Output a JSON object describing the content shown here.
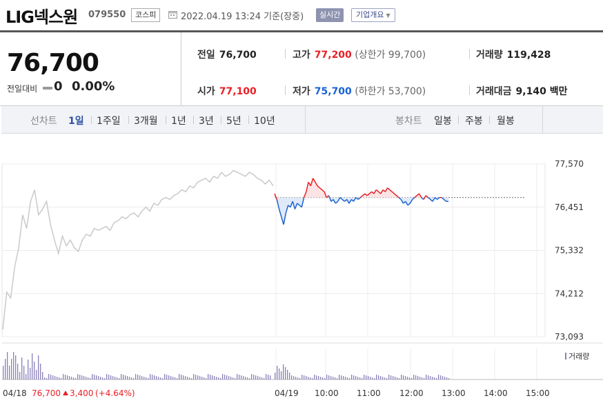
{
  "header": {
    "name": "LIG넥스원",
    "code": "079550",
    "market": "코스피",
    "datetime": "2022.04.19 13:24",
    "basis": "기준(장중)",
    "realtime_label": "실시간",
    "corp_info_label": "기업개요"
  },
  "summary": {
    "price": "76,700",
    "change_label": "전일대비",
    "change_value": "0",
    "change_pct": "0.00%",
    "prev_label": "전일",
    "prev": "76,700",
    "high_label": "고가",
    "high": "77,200",
    "upper_limit": "(상한가 99,700)",
    "volume_label": "거래량",
    "volume": "119,428",
    "open_label": "시가",
    "open": "77,100",
    "low_label": "저가",
    "low": "75,700",
    "lower_limit": "(하한가 53,700)",
    "value_label": "거래대금",
    "value": "9,140",
    "value_unit": "백만"
  },
  "tabs": {
    "line_label": "선차트",
    "periods": [
      "1일",
      "1주일",
      "3개월",
      "1년",
      "3년",
      "5년",
      "10년"
    ],
    "active_period": "1일",
    "candle_label": "봉차트",
    "candles": [
      "일봉",
      "주봉",
      "월봉"
    ]
  },
  "colors": {
    "up": "#e81f25",
    "down": "#1a62d1",
    "prev_day": "#c9c9c9",
    "volume": "#8a7fb8"
  },
  "chart_data": {
    "type": "line",
    "y_ticks": [
      "77,570",
      "76,451",
      "75,332",
      "74,212",
      "73,093"
    ],
    "ylim": [
      73093,
      77570
    ],
    "x_ticks": [
      "04/19",
      "10:00",
      "11:00",
      "12:00",
      "13:00",
      "14:00",
      "15:00"
    ],
    "reference_price": 76700,
    "prev_day_label": "04/18",
    "prev_day_close": "76,700",
    "prev_day_change": "3,400",
    "prev_day_pct": "(+4.64%)",
    "volume_legend": "거래량",
    "series": [
      {
        "name": "04/18",
        "values": [
          73280,
          74250,
          74100,
          74900,
          75400,
          76250,
          75900,
          76600,
          76900,
          76250,
          76400,
          76600,
          76000,
          75600,
          75250,
          75700,
          75450,
          75600,
          75400,
          75300,
          75600,
          75750,
          75700,
          75900,
          75850,
          75900,
          75950,
          75850,
          76050,
          76100,
          76200,
          76150,
          76250,
          76300,
          76200,
          76350,
          76450,
          76350,
          76550,
          76500,
          76650,
          76700,
          76650,
          76750,
          76800,
          76900,
          76850,
          77000,
          76950,
          77100,
          77150,
          77200,
          77100,
          77250,
          77200,
          77350,
          77250,
          77300,
          77400,
          77350,
          77300,
          77250,
          77350,
          77300,
          77200,
          77150,
          77050,
          77150,
          77000
        ]
      },
      {
        "name": "04/19",
        "values": [
          76800,
          76650,
          76400,
          76200,
          76000,
          76300,
          76500,
          76450,
          76600,
          76400,
          76550,
          76500,
          76450,
          76700,
          76850,
          77100,
          77000,
          77200,
          77100,
          77000,
          76950,
          76900,
          76850,
          76700,
          76750,
          76600,
          76650,
          76550,
          76600,
          76700,
          76650,
          76600,
          76650,
          76550,
          76650,
          76600,
          76700,
          76650,
          76700,
          76750,
          76800,
          76750,
          76800,
          76850,
          76800,
          76900,
          76850,
          76800,
          76900,
          76850,
          76950,
          76900,
          76850,
          76800,
          76750,
          76700,
          76650,
          76550,
          76600,
          76500,
          76550,
          76650,
          76700,
          76750,
          76800,
          76700,
          76650,
          76750,
          76700,
          76650,
          76600,
          76700,
          76650,
          76700,
          76700,
          76650,
          76600,
          76600
        ]
      }
    ]
  }
}
